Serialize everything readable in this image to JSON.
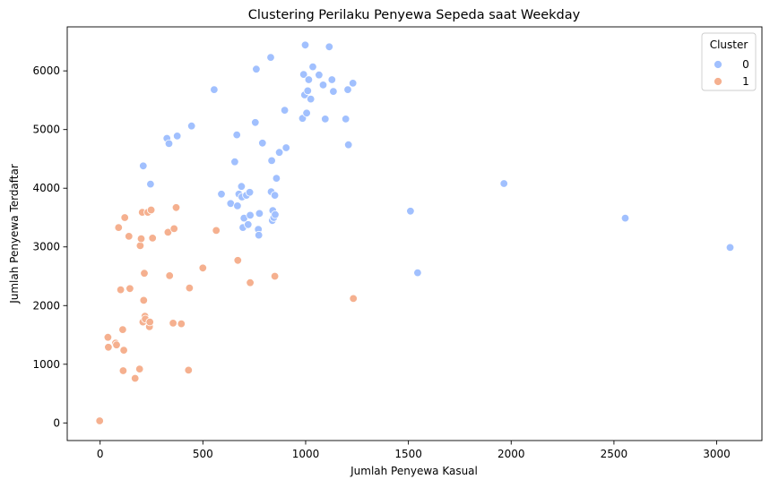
{
  "chart_data": {
    "type": "scatter",
    "title": "Clustering Perilaku Penyewa Sepeda saat Weekday",
    "xlabel": "Jumlah Penyewa Kasual",
    "ylabel": "Jumlah Penyewa Terdaftar",
    "xlim": [
      -160,
      3220
    ],
    "ylim": [
      -300,
      6750
    ],
    "xticks": [
      0,
      500,
      1000,
      1500,
      2000,
      2500,
      3000
    ],
    "yticks": [
      0,
      1000,
      2000,
      3000,
      4000,
      5000,
      6000
    ],
    "grid": false,
    "legend": {
      "title": "Cluster",
      "position": "top-right"
    },
    "series": [
      {
        "name": "0",
        "color": "#a1c0fe",
        "points": [
          [
            210,
            4380
          ],
          [
            245,
            4070
          ],
          [
            325,
            4850
          ],
          [
            335,
            4760
          ],
          [
            375,
            4890
          ],
          [
            445,
            5060
          ],
          [
            555,
            5680
          ],
          [
            590,
            3900
          ],
          [
            635,
            3740
          ],
          [
            655,
            4450
          ],
          [
            665,
            4910
          ],
          [
            668,
            3700
          ],
          [
            675,
            3900
          ],
          [
            688,
            4030
          ],
          [
            690,
            3850
          ],
          [
            695,
            3330
          ],
          [
            700,
            3490
          ],
          [
            712,
            3880
          ],
          [
            720,
            3380
          ],
          [
            728,
            3930
          ],
          [
            730,
            3540
          ],
          [
            755,
            5120
          ],
          [
            760,
            6030
          ],
          [
            770,
            3300
          ],
          [
            772,
            3200
          ],
          [
            775,
            3570
          ],
          [
            790,
            4770
          ],
          [
            830,
            6230
          ],
          [
            832,
            3940
          ],
          [
            835,
            4470
          ],
          [
            838,
            3450
          ],
          [
            840,
            3620
          ],
          [
            845,
            3500
          ],
          [
            850,
            3880
          ],
          [
            852,
            3550
          ],
          [
            858,
            4170
          ],
          [
            872,
            4610
          ],
          [
            898,
            5330
          ],
          [
            905,
            4690
          ],
          [
            985,
            5190
          ],
          [
            990,
            5940
          ],
          [
            995,
            5590
          ],
          [
            998,
            6440
          ],
          [
            1005,
            5280
          ],
          [
            1010,
            5660
          ],
          [
            1015,
            5850
          ],
          [
            1025,
            5520
          ],
          [
            1035,
            6070
          ],
          [
            1065,
            5930
          ],
          [
            1085,
            5760
          ],
          [
            1095,
            5180
          ],
          [
            1115,
            6410
          ],
          [
            1128,
            5850
          ],
          [
            1135,
            5650
          ],
          [
            1195,
            5180
          ],
          [
            1205,
            5680
          ],
          [
            1208,
            4740
          ],
          [
            1230,
            5790
          ],
          [
            1510,
            3610
          ],
          [
            1545,
            2560
          ],
          [
            1965,
            4080
          ],
          [
            2555,
            3490
          ],
          [
            3065,
            2990
          ]
        ]
      },
      {
        "name": "1",
        "color": "#f5b08f",
        "points": [
          [
            -2,
            35
          ],
          [
            38,
            1460
          ],
          [
            40,
            1290
          ],
          [
            75,
            1360
          ],
          [
            80,
            1330
          ],
          [
            90,
            3330
          ],
          [
            100,
            2270
          ],
          [
            110,
            1590
          ],
          [
            112,
            890
          ],
          [
            115,
            1240
          ],
          [
            120,
            3500
          ],
          [
            140,
            3180
          ],
          [
            145,
            2290
          ],
          [
            170,
            760
          ],
          [
            192,
            920
          ],
          [
            195,
            3020
          ],
          [
            200,
            3140
          ],
          [
            205,
            3590
          ],
          [
            208,
            1720
          ],
          [
            212,
            2090
          ],
          [
            215,
            2550
          ],
          [
            218,
            1820
          ],
          [
            220,
            1770
          ],
          [
            232,
            3590
          ],
          [
            240,
            1640
          ],
          [
            242,
            1720
          ],
          [
            248,
            3630
          ],
          [
            255,
            3150
          ],
          [
            330,
            3250
          ],
          [
            338,
            2510
          ],
          [
            355,
            1700
          ],
          [
            360,
            3310
          ],
          [
            370,
            3670
          ],
          [
            395,
            1690
          ],
          [
            430,
            900
          ],
          [
            435,
            2300
          ],
          [
            500,
            2640
          ],
          [
            565,
            3280
          ],
          [
            670,
            2770
          ],
          [
            730,
            2390
          ],
          [
            850,
            2500
          ],
          [
            1232,
            2120
          ]
        ]
      }
    ]
  }
}
